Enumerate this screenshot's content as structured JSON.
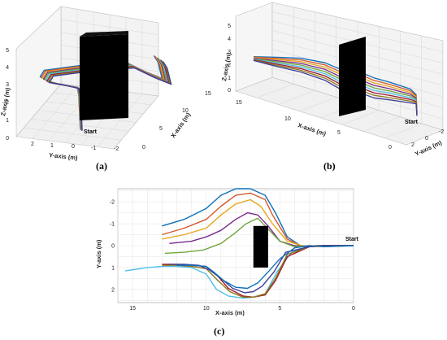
{
  "panels": [
    {
      "id": "a",
      "label": "(a)"
    },
    {
      "id": "b",
      "label": "(b)"
    },
    {
      "id": "c",
      "label": "(c)"
    }
  ],
  "start_label": "Start",
  "colors": {
    "obstacle": "#000000",
    "series": [
      "#0d6fb8",
      "#d5592b",
      "#e8a61c",
      "#7a2b8e",
      "#6fa83a",
      "#4fbfe8",
      "#a1172f",
      "#8a7a1a",
      "#3d3d9a"
    ]
  },
  "chart_data": [
    {
      "type": "line3d",
      "panel": "a",
      "xlabel": "X-axis (m)",
      "ylabel": "Y-axis (m)",
      "zlabel": "Z-axis (m)",
      "x_ticks": [
        "0",
        "5",
        "10",
        "15"
      ],
      "y_ticks": [
        "2",
        "1",
        "0",
        "-1",
        "-2"
      ],
      "z_ticks": [
        "0",
        "1",
        "2",
        "3",
        "4",
        "5"
      ],
      "grid": true
    },
    {
      "type": "line3d",
      "panel": "b",
      "xlabel": "X-axis (m)",
      "ylabel": "Y-axis (m)",
      "zlabel": "Z-axis (m)",
      "x_ticks": [
        "15",
        "10",
        "5",
        "0"
      ],
      "y_ticks": [
        "2",
        "0",
        "-2"
      ],
      "z_ticks": [
        "0",
        "1",
        "2",
        "3",
        "4",
        "5"
      ],
      "grid": true
    },
    {
      "type": "line",
      "panel": "c",
      "xlabel": "X-axis (m)",
      "ylabel": "Y-axis (m)",
      "xlim": [
        16,
        0
      ],
      "ylim": [
        2.6,
        -2.6
      ],
      "x_ticks": [
        "15",
        "10",
        "5",
        "0"
      ],
      "y_ticks": [
        "-2",
        "-1",
        "0",
        "1",
        "2"
      ],
      "grid": true,
      "obstacle": {
        "x": [
          5.8,
          6.8
        ],
        "y": [
          -0.9,
          1.0
        ]
      },
      "series": [
        {
          "x": [
            13,
            11.5,
            10,
            9,
            8,
            7,
            6,
            5.3,
            4.5,
            3.5,
            2.5,
            1.5,
            0
          ],
          "y": [
            -0.9,
            -1.2,
            -1.7,
            -2.3,
            -2.6,
            -2.6,
            -2.3,
            -1.5,
            -0.4,
            0.05,
            0,
            0,
            0
          ]
        },
        {
          "x": [
            13,
            11.5,
            10,
            9,
            8,
            7,
            6,
            5.5,
            4.5,
            3.5,
            2.5,
            1.5,
            0
          ],
          "y": [
            -0.5,
            -0.8,
            -1.2,
            -1.8,
            -2.3,
            -2.4,
            -2.1,
            -1.4,
            -0.3,
            0.05,
            0,
            0,
            0
          ]
        },
        {
          "x": [
            13,
            11.5,
            10,
            9,
            8,
            7,
            6.3,
            5.5,
            4.5,
            3.5,
            2.5,
            1.5,
            0
          ],
          "y": [
            -0.3,
            -0.5,
            -0.8,
            -1.4,
            -1.9,
            -2.1,
            -1.8,
            -1.0,
            -0.2,
            0,
            0.05,
            0,
            0
          ]
        },
        {
          "x": [
            12.5,
            11,
            10,
            9,
            8,
            7.2,
            6.5,
            5.8,
            5,
            4,
            3,
            2,
            0
          ],
          "y": [
            -0.1,
            -0.2,
            -0.4,
            -0.7,
            -1.2,
            -1.5,
            -1.4,
            -0.9,
            -0.2,
            0,
            0.05,
            0,
            0
          ]
        },
        {
          "x": [
            12.8,
            11.5,
            10.2,
            9,
            8,
            7.3,
            6.5,
            6,
            5,
            4,
            3,
            2,
            0
          ],
          "y": [
            0.35,
            0.3,
            0.2,
            -0.1,
            -0.6,
            -1.0,
            -1.25,
            -0.9,
            -0.2,
            0.05,
            0,
            0.05,
            0
          ]
        },
        {
          "x": [
            15.5,
            14,
            13,
            12,
            11,
            10,
            9.3,
            8.5,
            7.5,
            6.8,
            6,
            5.2,
            4.2,
            3,
            2,
            0
          ],
          "y": [
            1.15,
            1.0,
            0.95,
            0.95,
            1.0,
            1.3,
            2.0,
            2.3,
            2.4,
            2.35,
            2.2,
            1.2,
            0.3,
            0.05,
            0,
            0
          ]
        },
        {
          "x": [
            13,
            12,
            11,
            10,
            9.2,
            8.5,
            7.5,
            6.8,
            6,
            5.3,
            4.5,
            3,
            2,
            0
          ],
          "y": [
            0.85,
            0.85,
            0.9,
            0.95,
            1.4,
            1.95,
            2.3,
            2.35,
            2.25,
            1.6,
            0.5,
            0.05,
            0,
            0
          ]
        },
        {
          "x": [
            13,
            12,
            11,
            10,
            9.2,
            8.4,
            7.5,
            6.8,
            6,
            5.3,
            4.5,
            3,
            2,
            0
          ],
          "y": [
            0.9,
            0.9,
            0.95,
            1.05,
            1.6,
            2.1,
            2.35,
            2.35,
            2.2,
            1.5,
            0.4,
            0.05,
            0,
            0
          ]
        },
        {
          "x": [
            12.5,
            11.5,
            10.5,
            9.8,
            9,
            8.2,
            7.4,
            6.8,
            6.2,
            5.4,
            4.6,
            3,
            2,
            0
          ],
          "y": [
            0.85,
            0.85,
            0.9,
            1.1,
            1.5,
            1.95,
            2.15,
            2.1,
            1.85,
            1.2,
            0.3,
            0.05,
            0,
            0
          ]
        },
        {
          "x": [
            12,
            11,
            10,
            9.5,
            8.8,
            8,
            7.2,
            6.5,
            5.8,
            5,
            4,
            3,
            2,
            0
          ],
          "y": [
            0.9,
            0.9,
            0.95,
            1.2,
            1.6,
            1.9,
            1.95,
            1.7,
            1.2,
            0.6,
            0.1,
            0,
            0.05,
            0
          ]
        }
      ]
    }
  ]
}
